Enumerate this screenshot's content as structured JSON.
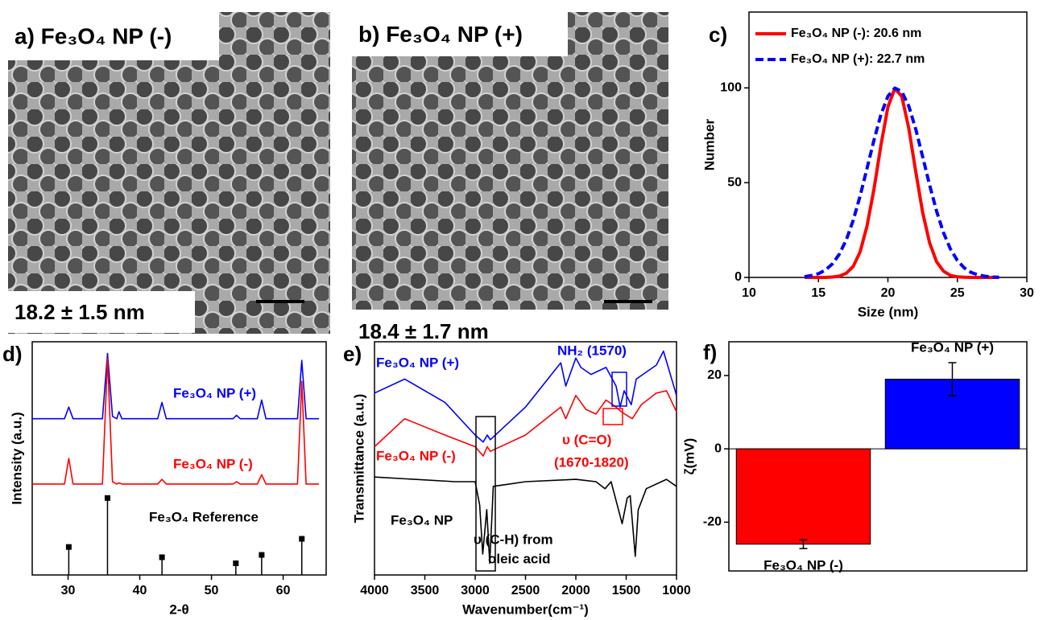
{
  "chart_data": [
    {
      "type": "image",
      "label": "a) Fe₃O₄ NP (-)",
      "caption": "18.2 ± 1.5 nm"
    },
    {
      "type": "image",
      "label": "b) Fe₃O₄ NP (+)",
      "caption": "18.4 ± 1.7 nm"
    },
    {
      "type": "line",
      "panel_label": "c)",
      "xlabel": "Size (nm)",
      "ylabel": "Number",
      "xlim": [
        10,
        30
      ],
      "xticks": [
        10,
        15,
        20,
        25,
        30
      ],
      "ylim": [
        0,
        140
      ],
      "yticks": [
        0,
        50,
        100
      ],
      "legend": "top-left",
      "x": [
        14,
        14.5,
        15,
        15.5,
        16,
        16.5,
        17,
        17.5,
        18,
        18.5,
        19,
        19.5,
        20,
        20.5,
        21,
        21.5,
        22,
        22.5,
        23,
        23.5,
        24,
        24.5,
        25,
        25.5,
        26,
        26.5,
        27,
        27.5,
        28
      ],
      "series": [
        {
          "name": "Fe₃O₄ NP (-): 20.6 nm",
          "color": "#ff0000",
          "dash": false,
          "values": [
            0,
            0,
            0,
            0,
            0.2,
            0.7,
            2.2,
            5.8,
            13.5,
            27.2,
            46.9,
            69.9,
            89.9,
            99.7,
            95.4,
            78.7,
            56,
            34.4,
            18.2,
            8.3,
            3.3,
            1.1,
            0.3,
            0.1,
            0,
            0,
            0,
            0,
            0
          ]
        },
        {
          "name": "Fe₃O₄ NP (+): 22.7 nm",
          "color": "#0000ff",
          "dash": true,
          "values": [
            0.4,
            1,
            2,
            3.9,
            7.1,
            12.2,
            19.8,
            30.1,
            43,
            57.6,
            72.6,
            86,
            95.6,
            99.9,
            98,
            90.4,
            78.3,
            63.7,
            48.7,
            35,
            23.6,
            15,
            8.9,
            5,
            2.6,
            1.3,
            0.6,
            0.2,
            0.1
          ]
        }
      ]
    },
    {
      "type": "line",
      "panel_label": "d)",
      "xlabel": "2-θ",
      "ylabel": "Intensity (a.u.)",
      "xlim": [
        25,
        66
      ],
      "xticks": [
        30,
        40,
        50,
        60
      ],
      "ylim": [
        0,
        100
      ],
      "x": [
        25,
        29.5,
        30.1,
        30.7,
        34.8,
        35.5,
        36.2,
        36.8,
        37.1,
        37.5,
        42.5,
        43.1,
        43.7,
        53,
        53.5,
        54,
        56.4,
        57,
        57.6,
        62,
        62.6,
        63.2,
        65
      ],
      "series": [
        {
          "name": "Fe₃O₄ NP (+)",
          "color": "#0000ff",
          "values": [
            67,
            67,
            72,
            67,
            67,
            95,
            68,
            67,
            70,
            67,
            67,
            74,
            67,
            67,
            68.5,
            67,
            67,
            75,
            67,
            67,
            92,
            67,
            67
          ]
        },
        {
          "name": "Fe₃O₄ NP (-)",
          "color": "#ff0000",
          "values": [
            39,
            39,
            50,
            39,
            39,
            93,
            40,
            39,
            39.5,
            39,
            39,
            41,
            39,
            39,
            40,
            39,
            39,
            43,
            39,
            39,
            83,
            39,
            39
          ]
        },
        {
          "name": "Fe₃O₄ Reference",
          "color": "#000000",
          "kind": "stick",
          "x": [
            30.1,
            35.5,
            43.1,
            53.4,
            57,
            62.6
          ],
          "values": [
            12,
            33,
            7.6,
            5,
            8.6,
            15.5
          ]
        }
      ]
    },
    {
      "type": "line",
      "panel_label": "e)",
      "xlabel": "Wavenumber(cm⁻¹)",
      "ylabel": "Transmittance (a.u.)",
      "xlim": [
        4000,
        1000
      ],
      "xticks": [
        4000,
        3500,
        3000,
        2500,
        2000,
        1500,
        1000
      ],
      "ylim": [
        0,
        100
      ],
      "annotations": [
        {
          "text": "NH₂ (1570)",
          "color": "#0000ff"
        },
        {
          "text": "υ (C=O)",
          "color": "#ff0000"
        },
        {
          "text": "(1670-1820)",
          "color": "#ff0000"
        },
        {
          "text": "υ (C-H) from",
          "color": "#000000"
        },
        {
          "text": "oleic acid",
          "color": "#000000"
        }
      ],
      "series": [
        {
          "name": "Fe₃O₄ NP (+)",
          "color": "#0000ff",
          "x": [
            4000,
            3700,
            3300,
            3000,
            2920,
            2880,
            2850,
            2500,
            2150,
            2100,
            2000,
            1950,
            1850,
            1700,
            1600,
            1560,
            1520,
            1450,
            1400,
            1200,
            1130,
            1000
          ],
          "values": [
            78,
            84,
            74,
            60,
            57,
            60,
            58,
            72,
            91,
            81,
            93,
            89,
            86,
            89,
            81,
            72,
            79,
            73,
            84,
            90,
            96,
            77
          ]
        },
        {
          "name": "Fe₃O₄ NP (-)",
          "color": "#ff0000",
          "x": [
            4000,
            3700,
            3300,
            3000,
            2920,
            2880,
            2850,
            2500,
            2150,
            2100,
            2000,
            1900,
            1800,
            1700,
            1600,
            1550,
            1440,
            1350,
            1200,
            1100,
            1000
          ],
          "values": [
            55,
            67,
            60,
            55,
            51,
            55,
            53,
            60,
            72,
            67,
            77,
            71,
            69,
            75,
            72,
            70,
            67,
            73,
            78,
            79,
            70
          ]
        },
        {
          "name": "Fe₃O₄ NP",
          "color": "#000000",
          "x": [
            4000,
            3600,
            3200,
            3000,
            2955,
            2925,
            2885,
            2855,
            2820,
            2500,
            2000,
            1800,
            1710,
            1650,
            1540,
            1490,
            1460,
            1410,
            1380,
            1300,
            1100,
            1000
          ],
          "values": [
            42,
            41,
            40,
            40,
            30,
            9,
            28,
            5,
            38,
            40,
            41,
            40,
            37,
            40,
            22,
            33,
            34,
            8,
            28,
            37,
            41,
            38
          ]
        }
      ]
    },
    {
      "type": "bar",
      "panel_label": "f)",
      "ylabel": "ζ(mV)",
      "categories": [
        "Fe₃O₄ NP (-)",
        "Fe₃O₄ NP (+)"
      ],
      "values": [
        -26,
        19
      ],
      "errors": [
        1.2,
        4.5
      ],
      "colors": [
        "#ff0000",
        "#0000ff"
      ],
      "ylim": [
        -33.3,
        29.2
      ],
      "yticks": [
        -20,
        0,
        20
      ]
    }
  ]
}
